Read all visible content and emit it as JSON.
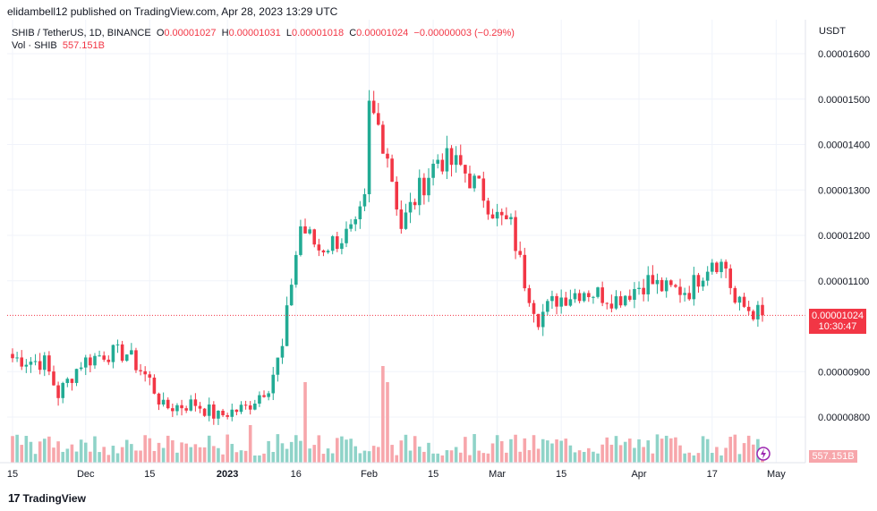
{
  "header": {
    "published_text": "elidambell12 published on TradingView.com, Apr 28, 2023 13:29 UTC"
  },
  "legend": {
    "symbol": "SHIB / TetherUS, 1D, BINANCE",
    "o_label": "O",
    "o_value": "0.00001027",
    "h_label": "H",
    "h_value": "0.00001031",
    "l_label": "L",
    "l_value": "0.00001018",
    "c_label": "C",
    "c_value": "0.00001024",
    "change": "−0.00000003 (−0.29%)",
    "vol_label": "Vol · SHIB",
    "vol_value": "557.151B"
  },
  "price_axis": {
    "currency": "USDT",
    "ticks": [
      "0.00001600",
      "0.00001500",
      "0.00001400",
      "0.00001300",
      "0.00001200",
      "0.00001100",
      "0.00000900",
      "0.00000800"
    ],
    "current_price": "0.00001024",
    "countdown": "10:30:47",
    "volume_badge": "557.151B"
  },
  "time_axis": {
    "labels": [
      "15",
      "Dec",
      "15",
      "2023",
      "16",
      "Feb",
      "15",
      "Mar",
      "15",
      "Apr",
      "17",
      "May"
    ]
  },
  "brand": {
    "logo": "17",
    "name": "TradingView"
  },
  "colors": {
    "up": "#22ab94",
    "down": "#f23645",
    "vol_up": "#8fd3c8",
    "vol_down": "#f7a6ab",
    "grid": "#f0f3fa",
    "text": "#131722"
  },
  "chart_data": {
    "type": "candlestick",
    "title": "SHIB / TetherUS, 1D, BINANCE",
    "y_unit": "USDT",
    "ylim": [
      7.7e-06,
      1.63e-05
    ],
    "grid": true,
    "x_range": [
      "2022-11-15",
      "2023-04-28"
    ],
    "price_segments": [
      [
        "2022-11-15",
        9.3e-06
      ],
      [
        "2022-11-22",
        9.2e-06
      ],
      [
        "2022-11-25",
        8.5e-06
      ],
      [
        "2022-11-30",
        9.2e-06
      ],
      [
        "2022-12-05",
        9.4e-06
      ],
      [
        "2022-12-10",
        9.4e-06
      ],
      [
        "2022-12-15",
        8.8e-06
      ],
      [
        "2022-12-18",
        8.2e-06
      ],
      [
        "2022-12-25",
        8.3e-06
      ],
      [
        "2022-12-30",
        8e-06
      ],
      [
        "2023-01-01",
        8.1e-06
      ],
      [
        "2023-01-05",
        8.2e-06
      ],
      [
        "2023-01-10",
        8.7e-06
      ],
      [
        "2023-01-13",
        9.5e-06
      ],
      [
        "2023-01-15",
        1.1e-05
      ],
      [
        "2023-01-17",
        1.22e-05
      ],
      [
        "2023-01-21",
        1.17e-05
      ],
      [
        "2023-01-25",
        1.19e-05
      ],
      [
        "2023-01-29",
        1.21e-05
      ],
      [
        "2023-01-31",
        1.27e-05
      ],
      [
        "2023-02-01",
        1.48e-05
      ],
      [
        "2023-02-03",
        1.44e-05
      ],
      [
        "2023-02-05",
        1.38e-05
      ],
      [
        "2023-02-08",
        1.22e-05
      ],
      [
        "2023-02-12",
        1.3e-05
      ],
      [
        "2023-02-16",
        1.37e-05
      ],
      [
        "2023-02-21",
        1.35e-05
      ],
      [
        "2023-02-26",
        1.29e-05
      ],
      [
        "2023-03-01",
        1.24e-05
      ],
      [
        "2023-03-04",
        1.22e-05
      ],
      [
        "2023-03-07",
        1.1e-05
      ],
      [
        "2023-03-10",
        1.02e-05
      ],
      [
        "2023-03-14",
        1.06e-05
      ],
      [
        "2023-03-20",
        1.08e-05
      ],
      [
        "2023-03-27",
        1.06e-05
      ],
      [
        "2023-04-03",
        1.1e-05
      ],
      [
        "2023-04-07",
        1.08e-05
      ],
      [
        "2023-04-12",
        1.08e-05
      ],
      [
        "2023-04-17",
        1.15e-05
      ],
      [
        "2023-04-20",
        1.13e-05
      ],
      [
        "2023-04-22",
        1.05e-05
      ],
      [
        "2023-04-28",
        1.024e-05
      ]
    ],
    "volume": {
      "label": "Vol · SHIB",
      "last": "557.151B",
      "spikes": [
        [
          "2023-01-06",
          "moderate"
        ],
        [
          "2023-01-18",
          "high"
        ],
        [
          "2023-02-04",
          "highest"
        ],
        [
          "2023-02-05",
          "high"
        ]
      ]
    }
  }
}
